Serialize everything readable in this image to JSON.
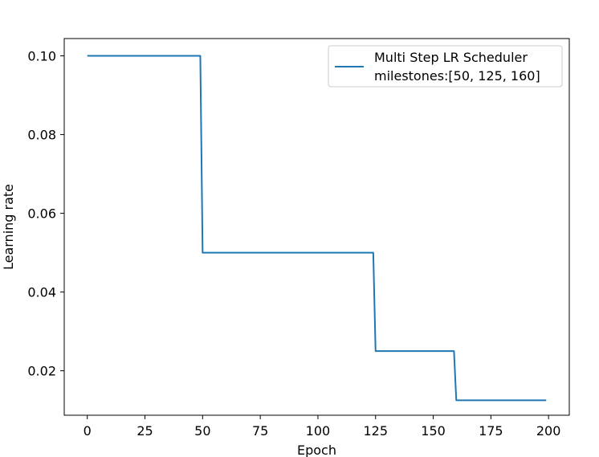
{
  "colors": {
    "series": "#1f77b4",
    "axis": "#000000",
    "legend_border": "#cccccc",
    "background": "#ffffff"
  },
  "chart_data": {
    "type": "line",
    "title": "",
    "xlabel": "Epoch",
    "ylabel": "Learning rate",
    "xlim": [
      -10,
      209
    ],
    "ylim": [
      0.0087,
      0.1044
    ],
    "xticks": [
      0,
      25,
      50,
      75,
      100,
      125,
      150,
      175,
      200
    ],
    "yticks": [
      0.02,
      0.04,
      0.06,
      0.08,
      0.1
    ],
    "xtick_labels": [
      "0",
      "25",
      "50",
      "75",
      "100",
      "125",
      "150",
      "175",
      "200"
    ],
    "ytick_labels": [
      "0.02",
      "0.04",
      "0.06",
      "0.08",
      "0.10"
    ],
    "grid": false,
    "legend_position": "upper right",
    "series": [
      {
        "name": "Multi Step LR Scheduler\nmilestones:[50, 125, 160]",
        "name_lines": [
          "Multi Step LR Scheduler",
          "milestones:[50, 125, 160]"
        ],
        "x": [
          0,
          49,
          50,
          124,
          125,
          159,
          160,
          199
        ],
        "y": [
          0.1,
          0.1,
          0.05,
          0.05,
          0.025,
          0.025,
          0.0125,
          0.0125
        ]
      }
    ]
  }
}
